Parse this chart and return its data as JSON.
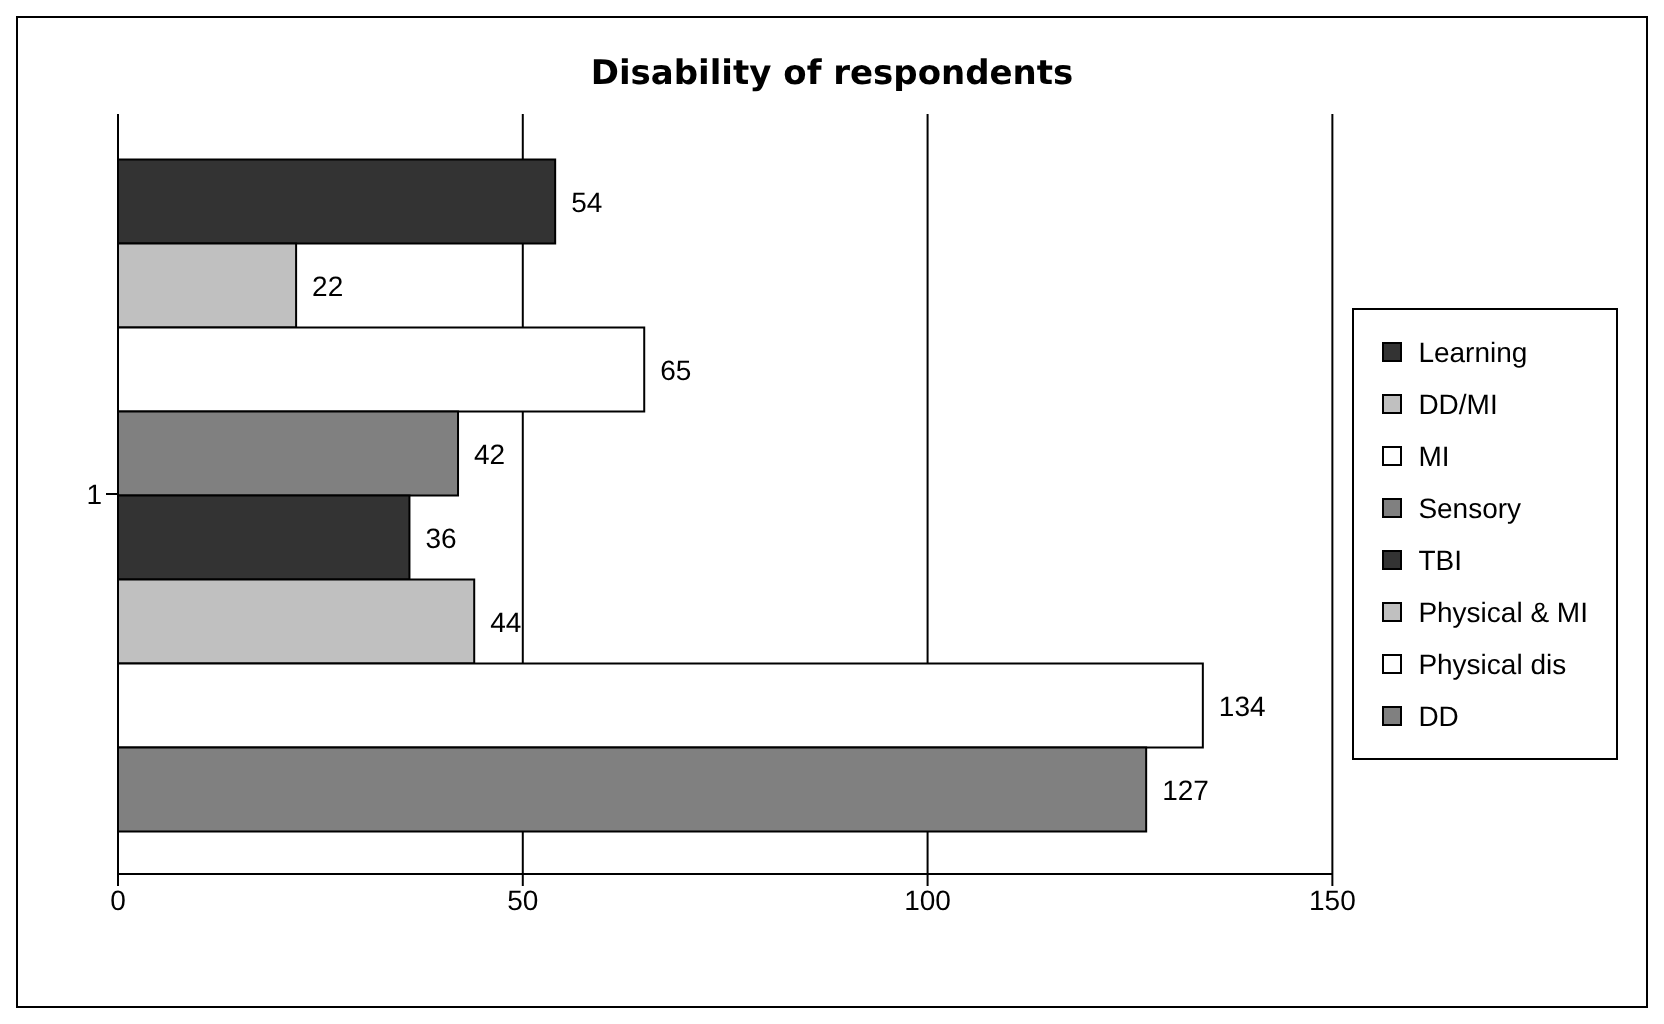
{
  "chart_data": {
    "type": "bar",
    "orientation": "horizontal",
    "title": "Disability of respondents",
    "categories": [
      "1"
    ],
    "series": [
      {
        "name": "Learning",
        "color": "#333333",
        "values": [
          54
        ]
      },
      {
        "name": "DD/MI",
        "color": "#c0c0c0",
        "values": [
          22
        ]
      },
      {
        "name": "MI",
        "color": "#ffffff",
        "values": [
          65
        ]
      },
      {
        "name": "Sensory",
        "color": "#808080",
        "values": [
          42
        ]
      },
      {
        "name": "TBI",
        "color": "#333333",
        "values": [
          36
        ]
      },
      {
        "name": "Physical & MI",
        "color": "#c0c0c0",
        "values": [
          44
        ]
      },
      {
        "name": "Physical dis",
        "color": "#ffffff",
        "values": [
          134
        ]
      },
      {
        "name": "DD",
        "color": "#808080",
        "values": [
          127
        ]
      }
    ],
    "xlim": [
      0,
      150
    ],
    "xticks": [
      0,
      50,
      100,
      150
    ],
    "grid": "x",
    "legend": "right",
    "data_labels": true
  }
}
